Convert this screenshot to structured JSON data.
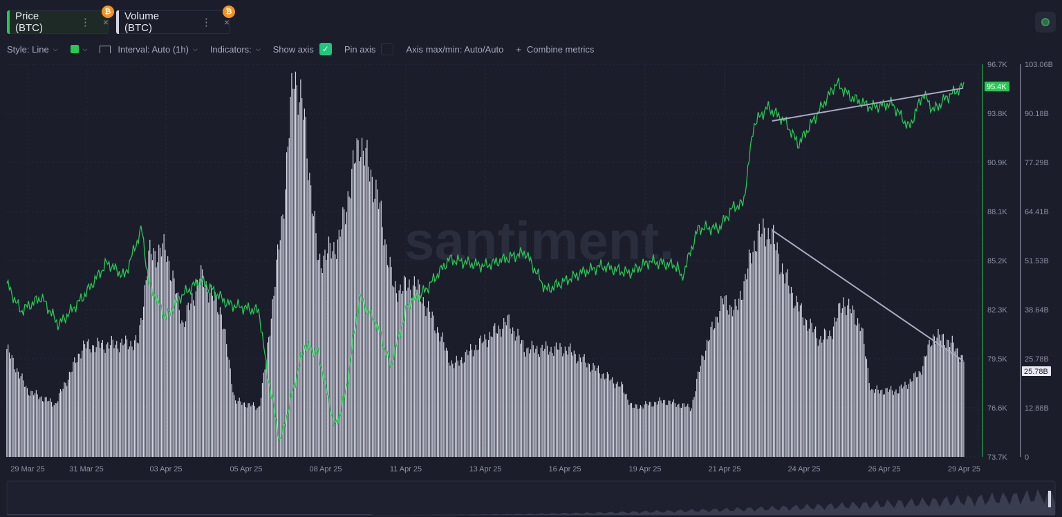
{
  "tabs": [
    {
      "label": "Price (BTC)",
      "menu": "⋮",
      "close": "×",
      "coin": "₿",
      "color": "#26c953"
    },
    {
      "label": "Volume (BTC)",
      "menu": "⋮",
      "close": "×",
      "coin": "₿",
      "color": "#d4d6e4"
    }
  ],
  "toolbar": {
    "style": "Style: Line",
    "color_swatch": "#26c953",
    "interval": "Interval: Auto (1h)",
    "indicators": "Indicators:",
    "show_axis": "Show axis",
    "show_axis_checked": true,
    "pin_axis": "Pin axis",
    "pin_axis_checked": false,
    "axis_maxmin": "Axis max/min: Auto/Auto",
    "combine": "Combine metrics",
    "combine_icon": "+"
  },
  "watermark": "santiment.",
  "chart_data": {
    "type": "line+bar",
    "x_unit": "days since 29 Mar 25",
    "x_ticks": [
      "29 Mar 25",
      "31 Mar 25",
      "03 Apr 25",
      "05 Apr 25",
      "08 Apr 25",
      "11 Apr 25",
      "13 Apr 25",
      "16 Apr 25",
      "19 Apr 25",
      "21 Apr 25",
      "24 Apr 25",
      "26 Apr 25",
      "29 Apr 25"
    ],
    "price_axis": {
      "ticks": [
        "96.7K",
        "93.8K",
        "90.9K",
        "88.1K",
        "85.2K",
        "82.3K",
        "79.5K",
        "76.6K",
        "73.7K"
      ],
      "range": [
        73.7,
        96.7
      ],
      "current": "95.4K"
    },
    "volume_axis": {
      "ticks": [
        "103.06B",
        "90.18B",
        "77.29B",
        "64.41B",
        "51.53B",
        "38.64B",
        "25.78B",
        "12.88B",
        "0"
      ],
      "range": [
        0,
        103.06
      ],
      "current": "25.78B"
    },
    "series": [
      {
        "name": "Price (BTC)",
        "type": "line",
        "unit": "K USD",
        "color": "#26c953",
        "points": [
          [
            -0.68,
            83.86
          ],
          [
            -0.23,
            82.24
          ],
          [
            0.45,
            83.05
          ],
          [
            1.01,
            81.43
          ],
          [
            1.8,
            83.05
          ],
          [
            2.59,
            85.08
          ],
          [
            3.16,
            84.27
          ],
          [
            3.72,
            87.1
          ],
          [
            3.95,
            83.86
          ],
          [
            4.51,
            81.84
          ],
          [
            4.96,
            83.05
          ],
          [
            5.64,
            84.07
          ],
          [
            6.54,
            82.65
          ],
          [
            7.55,
            82.24
          ],
          [
            7.78,
            79.0
          ],
          [
            8.23,
            74.55
          ],
          [
            9.02,
            80.2
          ],
          [
            9.47,
            79.8
          ],
          [
            10.03,
            75.36
          ],
          [
            10.37,
            77.4
          ],
          [
            10.82,
            83.05
          ],
          [
            11.39,
            81.43
          ],
          [
            11.84,
            79.0
          ],
          [
            12.4,
            82.65
          ],
          [
            12.97,
            83.46
          ],
          [
            13.75,
            85.28
          ],
          [
            14.88,
            84.88
          ],
          [
            16.23,
            85.69
          ],
          [
            16.91,
            83.46
          ],
          [
            18.04,
            84.47
          ],
          [
            18.71,
            84.88
          ],
          [
            19.62,
            84.47
          ],
          [
            20.29,
            85.16
          ],
          [
            21.2,
            84.88
          ],
          [
            21.31,
            84.07
          ],
          [
            21.87,
            87.1
          ],
          [
            22.55,
            87.1
          ],
          [
            23.0,
            88.32
          ],
          [
            23.34,
            88.52
          ],
          [
            23.68,
            93.18
          ],
          [
            24.13,
            94.19
          ],
          [
            24.69,
            93.38
          ],
          [
            25.14,
            92.0
          ],
          [
            25.82,
            93.99
          ],
          [
            26.38,
            95.6
          ],
          [
            26.83,
            94.8
          ],
          [
            27.51,
            94.19
          ],
          [
            28.19,
            94.4
          ],
          [
            28.75,
            92.97
          ],
          [
            29.2,
            95.0
          ],
          [
            29.54,
            93.99
          ],
          [
            29.99,
            94.8
          ],
          [
            30.51,
            95.4
          ]
        ]
      },
      {
        "name": "Volume (BTC)",
        "type": "bar",
        "unit": "B",
        "color": "#d4d6e4",
        "points": [
          [
            -0.68,
            28.3
          ],
          [
            0,
            17.4
          ],
          [
            0.9,
            13.8
          ],
          [
            1.8,
            29
          ],
          [
            3.61,
            30
          ],
          [
            3.95,
            52.8
          ],
          [
            4.51,
            54.6
          ],
          [
            5.07,
            34.7
          ],
          [
            5.64,
            47.4
          ],
          [
            6.31,
            38.3
          ],
          [
            6.76,
            14.7
          ],
          [
            7.55,
            12.9
          ],
          [
            7.78,
            25.6
          ],
          [
            8.34,
            65.5
          ],
          [
            8.68,
            101.8
          ],
          [
            9.02,
            89
          ],
          [
            9.47,
            51
          ],
          [
            10.15,
            56.4
          ],
          [
            10.82,
            83.6
          ],
          [
            11.39,
            69.1
          ],
          [
            11.95,
            43.7
          ],
          [
            12.63,
            45.5
          ],
          [
            13.3,
            34.7
          ],
          [
            13.87,
            23.8
          ],
          [
            14.66,
            29.2
          ],
          [
            15.67,
            35.6
          ],
          [
            16.23,
            28.3
          ],
          [
            17.59,
            28.3
          ],
          [
            18.71,
            22
          ],
          [
            19.39,
            18.3
          ],
          [
            19.73,
            12.9
          ],
          [
            20.74,
            14.7
          ],
          [
            21.65,
            12.9
          ],
          [
            21.98,
            25.6
          ],
          [
            22.66,
            41
          ],
          [
            23.11,
            38.3
          ],
          [
            23.79,
            58.2
          ],
          [
            24.24,
            59.1
          ],
          [
            24.69,
            47.4
          ],
          [
            25.25,
            37.4
          ],
          [
            25.82,
            31
          ],
          [
            26.16,
            32
          ],
          [
            26.61,
            41
          ],
          [
            27.17,
            34.7
          ],
          [
            27.51,
            17.4
          ],
          [
            28.41,
            17.4
          ],
          [
            29.09,
            22
          ],
          [
            29.54,
            32
          ],
          [
            30.1,
            30.1
          ],
          [
            30.51,
            25.6
          ]
        ]
      }
    ],
    "annotations": [
      {
        "type": "trendline",
        "series": "Price (BTC)",
        "from": [
          24.28,
          93.38
        ],
        "to": [
          30.51,
          95.3
        ]
      },
      {
        "type": "trendline",
        "series": "Volume (BTC)",
        "from": [
          24.28,
          59.5
        ],
        "to": [
          30.51,
          25.2
        ]
      }
    ],
    "grid": true
  }
}
